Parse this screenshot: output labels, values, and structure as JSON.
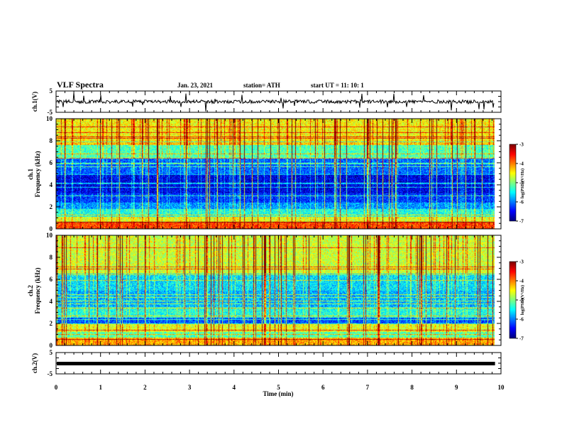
{
  "header": {
    "title": "VLF Spectra",
    "date": "Jan. 23, 2021",
    "station": "station= ATH",
    "start": "start  UT =   11: 10: 1"
  },
  "chart_data": [
    {
      "type": "line",
      "panel": "waveform-ch1",
      "ylabel": "ch.1(V)",
      "ylim": [
        -5,
        5
      ],
      "yticks": [
        "5",
        "-5"
      ],
      "xlim": [
        0,
        10
      ],
      "trace_level": 0,
      "trace_color": "#000000"
    },
    {
      "type": "heatmap",
      "panel": "spectrogram-ch1",
      "ylabel": "ch.1\nFrequency (kHz)",
      "ylim": [
        0,
        10
      ],
      "yticks": [
        "0",
        "2",
        "4",
        "6",
        "8",
        "10"
      ],
      "xlim": [
        0,
        9.85
      ],
      "colorbar": {
        "label": "log(PSD)(V²/Hz)",
        "range": [
          -7,
          -3
        ],
        "ticks": [
          "-3",
          "-4",
          "-5",
          "-6",
          "-7"
        ]
      },
      "band_levels": [
        {
          "f": [
            0,
            0.6
          ],
          "v": -3.8
        },
        {
          "f": [
            0.6,
            1.0
          ],
          "v": -4.6
        },
        {
          "f": [
            1.0,
            1.8
          ],
          "v": -5.4
        },
        {
          "f": [
            1.8,
            2.4
          ],
          "v": -5.9
        },
        {
          "f": [
            2.4,
            3.2
          ],
          "v": -6.3
        },
        {
          "f": [
            3.2,
            5.0
          ],
          "v": -6.6
        },
        {
          "f": [
            5.0,
            6.4
          ],
          "v": -6.1
        },
        {
          "f": [
            6.4,
            8.0
          ],
          "v": -5.2
        },
        {
          "f": [
            8.0,
            10.0
          ],
          "v": -4.5
        }
      ]
    },
    {
      "type": "heatmap",
      "panel": "spectrogram-ch2",
      "ylabel": "ch.2\nFrequency (kHz)",
      "ylim": [
        0,
        10
      ],
      "yticks": [
        "0",
        "2",
        "4",
        "6",
        "8",
        "10"
      ],
      "xlim": [
        0,
        9.85
      ],
      "colorbar": {
        "label": "log(PSD)(V²/Hz)",
        "range": [
          -7,
          -3
        ],
        "ticks": [
          "-3",
          "-4",
          "-5",
          "-6",
          "-7"
        ]
      },
      "band_levels": [
        {
          "f": [
            0,
            0.6
          ],
          "v": -4.2
        },
        {
          "f": [
            0.6,
            1.2
          ],
          "v": -5.2
        },
        {
          "f": [
            1.2,
            1.9
          ],
          "v": -4.6
        },
        {
          "f": [
            1.9,
            2.5
          ],
          "v": -6.2
        },
        {
          "f": [
            2.5,
            3.5
          ],
          "v": -5.4
        },
        {
          "f": [
            3.5,
            5.0
          ],
          "v": -5.8
        },
        {
          "f": [
            5.0,
            6.5
          ],
          "v": -5.6
        },
        {
          "f": [
            6.5,
            10.0
          ],
          "v": -4.7
        }
      ]
    },
    {
      "type": "line",
      "panel": "waveform-ch2",
      "ylabel": "ch.2(V)",
      "ylim": [
        -5,
        5
      ],
      "yticks": [
        "5",
        "-5"
      ],
      "xlim": [
        0,
        10
      ],
      "trace_level": 0,
      "trace_color": "#000000"
    }
  ],
  "xaxis": {
    "label": "Time (min)",
    "ticks": [
      "0",
      "1",
      "2",
      "3",
      "4",
      "5",
      "6",
      "7",
      "8",
      "9",
      "10"
    ],
    "range": [
      0,
      10
    ]
  }
}
